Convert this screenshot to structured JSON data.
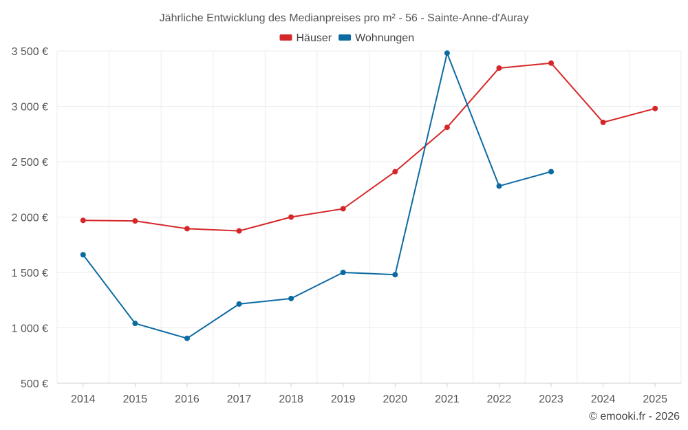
{
  "chart_data": {
    "type": "line",
    "title": "Jährliche Entwicklung des Medianpreises pro m² - 56 - Sainte-Anne-d'Auray",
    "xlabel": "",
    "ylabel": "",
    "categories": [
      "2014",
      "2015",
      "2016",
      "2017",
      "2018",
      "2019",
      "2020",
      "2021",
      "2022",
      "2023",
      "2024",
      "2025"
    ],
    "ylim": [
      500,
      3500
    ],
    "yticks": [
      500,
      1000,
      1500,
      2000,
      2500,
      3000,
      3500
    ],
    "ytick_labels": [
      "500 €",
      "1 000 €",
      "1 500 €",
      "2 000 €",
      "2 500 €",
      "3 000 €",
      "3 500 €"
    ],
    "grid": true,
    "legend_position": "top-center",
    "series": [
      {
        "name": "Häuser",
        "color": "#d62728",
        "values": [
          1970,
          1965,
          1895,
          1875,
          2000,
          2075,
          2410,
          2810,
          3345,
          3390,
          2855,
          2980
        ]
      },
      {
        "name": "Wohnungen",
        "color": "#0b6aa2",
        "values": [
          1660,
          1040,
          905,
          1215,
          1265,
          1500,
          1480,
          3480,
          2280,
          2410,
          null,
          null
        ]
      }
    ],
    "credit": "© emooki.fr - 2026"
  }
}
